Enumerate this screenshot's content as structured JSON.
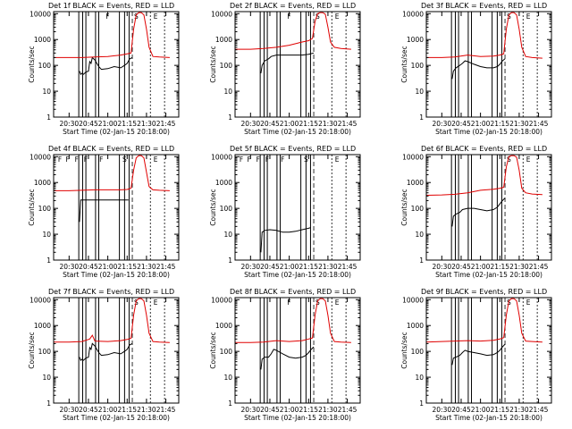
{
  "shared": {
    "x_ticks": [
      "20:30",
      "20:45",
      "21:00",
      "21:15",
      "21:30",
      "21:45"
    ],
    "x_tick_minutes": [
      30,
      45,
      60,
      75,
      90,
      105
    ],
    "y_ticks": [
      "1",
      "10",
      "100",
      "1000",
      "10000"
    ],
    "y_tick_values": [
      1,
      10,
      100,
      1000,
      10000
    ],
    "xlabel": "Start Time (02-Jan-15 20:18:00)",
    "ylabel": "Counts/sec",
    "xlim_minutes": [
      18,
      115
    ],
    "ylim": [
      1,
      12000
    ],
    "dashed_lines_minutes": [
      79,
      93,
      104
    ],
    "colors": {
      "events": "#000000",
      "lld": "#e00000",
      "frame": "#000000"
    }
  },
  "chart_data": [
    {
      "type": "line",
      "title": "Det 1f BLACK = Events, RED = LLD",
      "top_labels": [
        "F",
        "S",
        "E"
      ],
      "solid_lines_minutes": [
        37.5,
        40.5,
        43,
        50.5,
        53,
        69,
        73,
        76.5
      ],
      "series": [
        {
          "name": "Events",
          "x": [
            38,
            39,
            40,
            41,
            43,
            45,
            46,
            47,
            48,
            50,
            53,
            55,
            60,
            65,
            70,
            73,
            75,
            77,
            79
          ],
          "y": [
            60,
            45,
            50,
            45,
            55,
            60,
            140,
            120,
            200,
            160,
            90,
            70,
            75,
            90,
            80,
            100,
            120,
            180,
            200
          ]
        },
        {
          "name": "LLD",
          "x": [
            18,
            30,
            40,
            50,
            60,
            70,
            75,
            78,
            80,
            82,
            84,
            86,
            88,
            90,
            92,
            95,
            100,
            108
          ],
          "y": [
            200,
            200,
            200,
            210,
            220,
            250,
            280,
            300,
            2500,
            9000,
            11000,
            11000,
            9000,
            2500,
            500,
            220,
            210,
            200
          ]
        }
      ]
    },
    {
      "type": "line",
      "title": "Det 2f BLACK = Events, RED = LLD",
      "top_labels": [
        "F",
        "S",
        "E"
      ],
      "solid_lines_minutes": [
        37.5,
        40.5,
        43,
        50.5,
        53,
        69,
        73,
        76.5
      ],
      "series": [
        {
          "name": "Events",
          "x": [
            38,
            39,
            41,
            44,
            46,
            50,
            55,
            60,
            70,
            75,
            79
          ],
          "y": [
            50,
            100,
            150,
            180,
            220,
            250,
            250,
            250,
            250,
            270,
            300
          ]
        },
        {
          "name": "LLD",
          "x": [
            18,
            30,
            40,
            50,
            60,
            70,
            75,
            78,
            80,
            82,
            84,
            86,
            88,
            90,
            92,
            95,
            100,
            108
          ],
          "y": [
            420,
            420,
            450,
            500,
            600,
            800,
            900,
            1100,
            5000,
            10000,
            11000,
            11000,
            9500,
            3000,
            800,
            500,
            450,
            420
          ]
        }
      ]
    },
    {
      "type": "line",
      "title": "Det 3f BLACK = Events, RED = LLD",
      "top_labels": [
        "S",
        "E"
      ],
      "solid_lines_minutes": [
        37.5,
        40.5,
        43,
        50.5,
        53,
        69,
        73,
        76.5
      ],
      "series": [
        {
          "name": "Events",
          "x": [
            38,
            39,
            41,
            44,
            46,
            48,
            50,
            55,
            60,
            65,
            70,
            73,
            75,
            77,
            79
          ],
          "y": [
            30,
            60,
            80,
            100,
            120,
            150,
            140,
            110,
            90,
            80,
            80,
            90,
            110,
            150,
            180
          ]
        },
        {
          "name": "LLD",
          "x": [
            18,
            30,
            40,
            50,
            60,
            70,
            75,
            78,
            80,
            82,
            84,
            86,
            88,
            90,
            92,
            95,
            100,
            108
          ],
          "y": [
            200,
            200,
            210,
            250,
            220,
            230,
            250,
            280,
            2500,
            9000,
            11000,
            11000,
            9000,
            2500,
            500,
            220,
            200,
            190
          ]
        }
      ]
    },
    {
      "type": "line",
      "title": "Det 4f BLACK = Events, RED = LLD",
      "top_labels": [
        "F",
        "F",
        "F",
        "F",
        "F",
        "S",
        "E"
      ],
      "solid_lines_minutes": [
        37.5,
        40.5,
        43,
        50.5,
        53,
        69,
        73,
        76.5
      ],
      "series": [
        {
          "name": "Events",
          "x": [
            38,
            39,
            45,
            50,
            55,
            60,
            65,
            70,
            75,
            76
          ],
          "y": [
            30,
            210,
            210,
            210,
            210,
            210,
            210,
            210,
            210,
            210
          ]
        },
        {
          "name": "LLD",
          "x": [
            18,
            30,
            40,
            50,
            60,
            70,
            75,
            78,
            80,
            82,
            84,
            86,
            88,
            90,
            92,
            95,
            100,
            108
          ],
          "y": [
            480,
            480,
            500,
            520,
            520,
            520,
            540,
            600,
            3000,
            9000,
            11000,
            11000,
            9000,
            2500,
            700,
            520,
            500,
            480
          ]
        }
      ]
    },
    {
      "type": "line",
      "title": "Det 5f BLACK = Events, RED = LLD",
      "top_labels": [
        "F",
        "F",
        "F",
        "F",
        "F",
        "S",
        "E"
      ],
      "solid_lines_minutes": [
        37.5,
        40.5,
        43,
        50.5,
        53,
        69,
        73,
        76.5
      ],
      "series": [
        {
          "name": "Events",
          "x": [
            38,
            39,
            41,
            45,
            50,
            55,
            60,
            65,
            70,
            75,
            76.5
          ],
          "y": [
            2,
            12,
            14,
            15,
            14,
            12,
            12,
            13,
            15,
            17,
            18
          ]
        }
      ]
    },
    {
      "type": "line",
      "title": "Det 6f BLACK = Events, RED = LLD",
      "top_labels": [
        "S",
        "E"
      ],
      "solid_lines_minutes": [
        37.5,
        40.5,
        43,
        50.5,
        53,
        69,
        73,
        76.5
      ],
      "series": [
        {
          "name": "Events",
          "x": [
            38,
            39,
            41,
            44,
            46,
            50,
            55,
            60,
            65,
            70,
            73,
            75,
            77,
            79
          ],
          "y": [
            20,
            50,
            60,
            70,
            90,
            100,
            100,
            90,
            80,
            90,
            110,
            150,
            200,
            250
          ]
        },
        {
          "name": "LLD",
          "x": [
            18,
            30,
            40,
            50,
            60,
            70,
            75,
            78,
            80,
            82,
            84,
            86,
            88,
            90,
            92,
            95,
            100,
            108
          ],
          "y": [
            320,
            330,
            350,
            400,
            500,
            550,
            600,
            650,
            4000,
            10000,
            11000,
            11000,
            9500,
            3000,
            600,
            400,
            360,
            340
          ]
        }
      ]
    },
    {
      "type": "line",
      "title": "Det 7f BLACK = Events, RED = LLD",
      "top_labels": [
        "S",
        "E"
      ],
      "solid_lines_minutes": [
        37.5,
        40.5,
        43,
        50.5,
        53,
        69,
        73,
        76.5
      ],
      "series": [
        {
          "name": "Events",
          "x": [
            38,
            39,
            40,
            41,
            43,
            45,
            46,
            47,
            48,
            50,
            53,
            55,
            60,
            65,
            70,
            73,
            75,
            77,
            79
          ],
          "y": [
            60,
            45,
            50,
            45,
            55,
            60,
            140,
            120,
            200,
            160,
            90,
            70,
            75,
            90,
            80,
            100,
            120,
            180,
            200
          ]
        },
        {
          "name": "LLD",
          "x": [
            18,
            30,
            40,
            46,
            48,
            50,
            60,
            70,
            75,
            78,
            80,
            82,
            84,
            86,
            88,
            90,
            92,
            95,
            100,
            108
          ],
          "y": [
            230,
            230,
            240,
            300,
            420,
            250,
            240,
            260,
            290,
            320,
            2500,
            9000,
            11000,
            11000,
            9000,
            2500,
            500,
            240,
            230,
            220
          ]
        }
      ]
    },
    {
      "type": "line",
      "title": "Det 8f BLACK = Events, RED = LLD",
      "top_labels": [
        "F",
        "S",
        "E"
      ],
      "solid_lines_minutes": [
        37.5,
        40.5,
        43,
        50.5,
        53,
        69,
        73,
        76.5
      ],
      "series": [
        {
          "name": "Events",
          "x": [
            38,
            39,
            41,
            44,
            46,
            48,
            50,
            55,
            60,
            65,
            70,
            73,
            75,
            77,
            79
          ],
          "y": [
            20,
            50,
            60,
            60,
            80,
            120,
            110,
            80,
            60,
            55,
            60,
            70,
            90,
            120,
            150
          ]
        },
        {
          "name": "LLD",
          "x": [
            18,
            30,
            40,
            50,
            60,
            70,
            75,
            78,
            80,
            82,
            84,
            86,
            88,
            90,
            92,
            95,
            100,
            108
          ],
          "y": [
            220,
            220,
            230,
            260,
            240,
            260,
            300,
            330,
            2500,
            9000,
            11000,
            11000,
            9000,
            2500,
            500,
            240,
            230,
            220
          ]
        }
      ]
    },
    {
      "type": "line",
      "title": "Det 9f BLACK = Events, RED = LLD",
      "top_labels": [
        "S",
        "E"
      ],
      "solid_lines_minutes": [
        37.5,
        40.5,
        43,
        50.5,
        53,
        69,
        73,
        76.5
      ],
      "series": [
        {
          "name": "Events",
          "x": [
            38,
            39,
            41,
            44,
            46,
            48,
            50,
            55,
            60,
            65,
            70,
            73,
            75,
            77,
            79
          ],
          "y": [
            30,
            55,
            60,
            70,
            90,
            110,
            100,
            90,
            80,
            70,
            75,
            90,
            110,
            150,
            190
          ]
        },
        {
          "name": "LLD",
          "x": [
            18,
            30,
            40,
            50,
            60,
            70,
            75,
            78,
            80,
            82,
            84,
            86,
            88,
            90,
            92,
            95,
            100,
            108
          ],
          "y": [
            230,
            240,
            250,
            260,
            250,
            270,
            300,
            340,
            2500,
            9000,
            11000,
            11000,
            9000,
            2500,
            500,
            250,
            240,
            230
          ]
        }
      ]
    }
  ]
}
